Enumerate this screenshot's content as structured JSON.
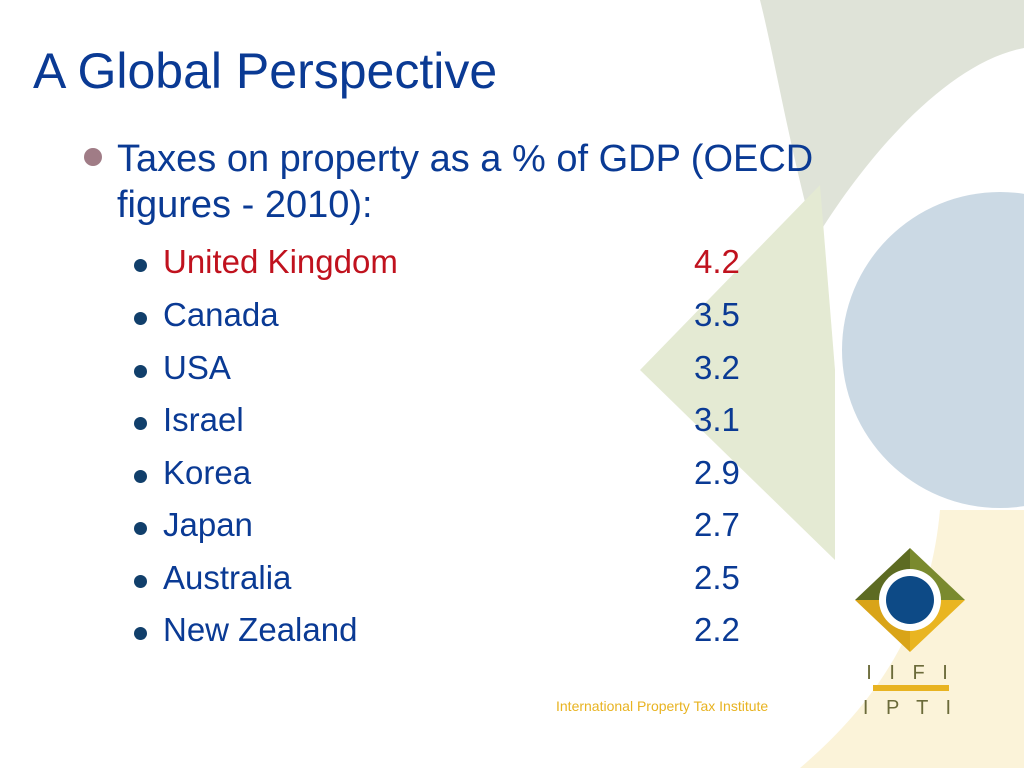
{
  "slide": {
    "title": "A Global Perspective",
    "main_bullet": "Taxes on property as a % of GDP (OECD figures - 2010):",
    "countries": [
      {
        "name": "United Kingdom",
        "value": "4.2",
        "highlight": true
      },
      {
        "name": "Canada",
        "value": "3.5",
        "highlight": false
      },
      {
        "name": "USA",
        "value": "3.2",
        "highlight": false
      },
      {
        "name": "Israel",
        "value": "3.1",
        "highlight": false
      },
      {
        "name": "Korea",
        "value": "2.9",
        "highlight": false
      },
      {
        "name": "Japan",
        "value": "2.7",
        "highlight": false
      },
      {
        "name": "Australia",
        "value": "2.5",
        "highlight": false
      },
      {
        "name": "New Zealand",
        "value": "2.2",
        "highlight": false
      }
    ],
    "footer": "International Property Tax Institute"
  },
  "logo": {
    "line1": "I I F I",
    "line2": "I P T I"
  },
  "colors": {
    "title": "#0a3a94",
    "highlight": "#c0121e",
    "gold": "#e8b321",
    "navy": "#0d4a86",
    "olive": "#6f7f2a"
  }
}
